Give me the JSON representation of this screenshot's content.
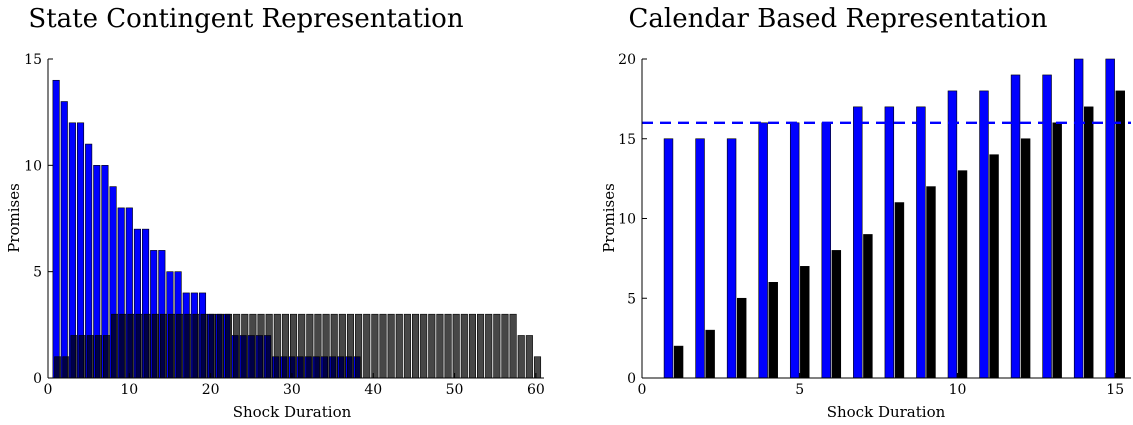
{
  "chart_data": [
    {
      "type": "bar",
      "title": "State Contingent Representation",
      "xlabel": "Shock Duration",
      "ylabel": "Promises",
      "xlim": [
        0,
        61
      ],
      "ylim": [
        0,
        15
      ],
      "xticks": [
        0,
        10,
        20,
        30,
        40,
        50,
        60
      ],
      "yticks": [
        0,
        5,
        10,
        15
      ],
      "grid": false,
      "series": [
        {
          "color": "#0000ff",
          "x": [
            1,
            2,
            3,
            4,
            5,
            6,
            7,
            8,
            9,
            10,
            11,
            12,
            13,
            14,
            15,
            16,
            17,
            18,
            19,
            20,
            21,
            22,
            23,
            24,
            25,
            26,
            27,
            28,
            29,
            30,
            31,
            32,
            33,
            34,
            35,
            36,
            37,
            38
          ],
          "values": [
            14,
            13,
            12,
            12,
            11,
            10,
            10,
            9,
            8,
            8,
            7,
            7,
            6,
            6,
            5,
            5,
            4,
            4,
            4,
            3,
            3,
            3,
            2,
            2,
            2,
            2,
            2,
            1,
            1,
            1,
            1,
            1,
            1,
            1,
            1,
            1,
            1,
            1
          ]
        },
        {
          "color": "#000000",
          "x": [
            1,
            2,
            3,
            4,
            5,
            6,
            7,
            8,
            9,
            10,
            11,
            12,
            13,
            14,
            15,
            16,
            17,
            18,
            19,
            20,
            21,
            22,
            23,
            24,
            25,
            26,
            27,
            28,
            29,
            30,
            31,
            32,
            33,
            34,
            35,
            36,
            37,
            38,
            39,
            40,
            41,
            42,
            43,
            44,
            45,
            46,
            47,
            48,
            49,
            50,
            51,
            52,
            53,
            54,
            55,
            56,
            57,
            58,
            59,
            60
          ],
          "values": [
            1,
            1,
            2,
            2,
            2,
            2,
            2,
            3,
            3,
            3,
            3,
            3,
            3,
            3,
            3,
            3,
            3,
            3,
            3,
            3,
            3,
            3,
            3,
            3,
            3,
            3,
            3,
            3,
            3,
            3,
            3,
            3,
            3,
            3,
            3,
            3,
            3,
            3,
            3,
            3,
            3,
            3,
            3,
            3,
            3,
            3,
            3,
            3,
            3,
            3,
            3,
            3,
            3,
            3,
            3,
            3,
            3,
            2,
            2,
            1
          ]
        }
      ]
    },
    {
      "type": "bar",
      "title": "Calendar Based Representation",
      "xlabel": "Shock Duration",
      "ylabel": "Promises",
      "xlim": [
        0,
        15.5
      ],
      "ylim": [
        0,
        20
      ],
      "xticks": [
        0,
        5,
        10,
        15
      ],
      "yticks": [
        0,
        5,
        10,
        15,
        20
      ],
      "grid": false,
      "reference_line": {
        "y": 16,
        "style": "dashed",
        "color": "#0000ff"
      },
      "categories": [
        1,
        2,
        3,
        4,
        5,
        6,
        7,
        8,
        9,
        10,
        11,
        12,
        13,
        14,
        15
      ],
      "series": [
        {
          "color": "#0000ff",
          "values": [
            15,
            15,
            15,
            16,
            16,
            16,
            17,
            17,
            17,
            18,
            18,
            19,
            19,
            20,
            20
          ]
        },
        {
          "color": "#000000",
          "values": [
            2,
            3,
            5,
            6,
            7,
            8,
            9,
            11,
            12,
            13,
            14,
            15,
            16,
            17,
            18
          ]
        }
      ]
    }
  ]
}
